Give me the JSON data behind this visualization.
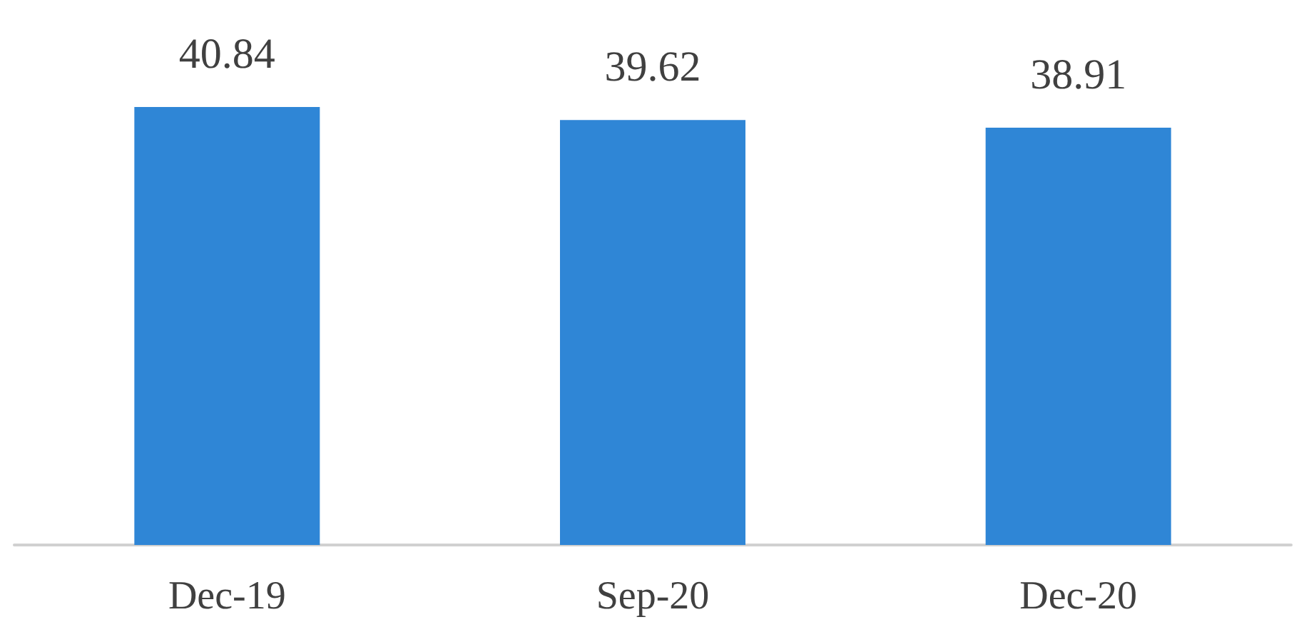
{
  "chart_data": {
    "type": "bar",
    "categories": [
      "Dec-19",
      "Sep-20",
      "Dec-20"
    ],
    "values": [
      40.84,
      39.62,
      38.91
    ],
    "color": "#2f86d6",
    "data_labels": true
  }
}
